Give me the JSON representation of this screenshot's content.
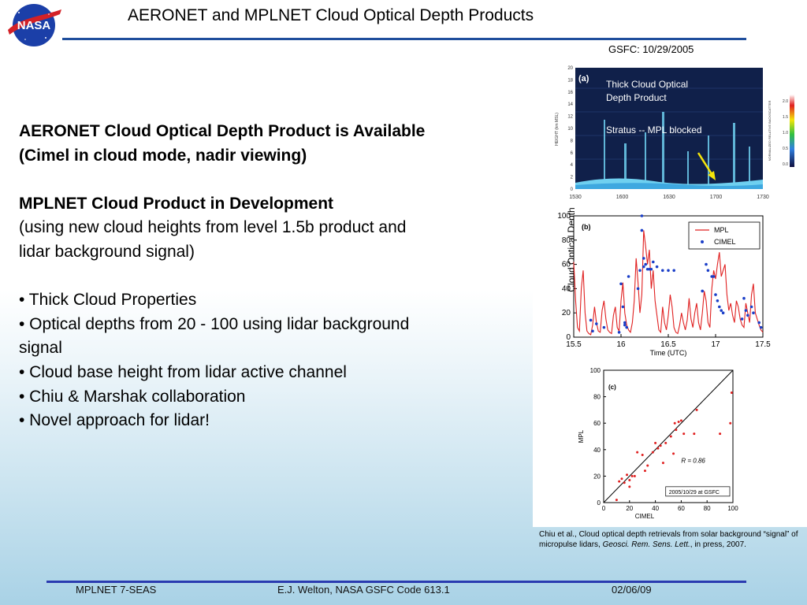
{
  "header": {
    "logo_text": "NASA",
    "title": "AERONET and MPLNET Cloud Optical Depth Products",
    "subtitle_date": "GSFC:  10/29/2005"
  },
  "body": {
    "heading1_line1": "AERONET Cloud Optical Depth Product is Available",
    "heading1_line2": "(Cimel in cloud mode, nadir viewing)",
    "heading2": "MPLNET Cloud Product in Development",
    "para_line1": "(using new cloud heights from level 1.5b product and",
    "para_line2": "lidar background signal)",
    "bullets": [
      "• Thick Cloud Properties",
      "• Optical depths from 20 - 100 using lidar background",
      "signal",
      "• Cloud base height from lidar active channel",
      "• Chiu & Marshak collaboration",
      "• Novel approach for lidar!"
    ]
  },
  "figure_a": {
    "panel_label": "(a)",
    "annotation1_line1": "Thick Cloud Optical",
    "annotation1_line2": "Depth Product",
    "annotation2": "Stratus -- MPL blocked",
    "ylabel": "HEIGHT (km MSL)",
    "colorbar_label": "NORMALIZED RELATIVE BACKSCATTER",
    "colorbar_ticks": [
      "2.0",
      "1.5",
      "1.0",
      "0.5",
      "0.0"
    ],
    "yticks": [
      "0",
      "2",
      "4",
      "6",
      "8",
      "10",
      "12",
      "14",
      "16",
      "18",
      "20"
    ],
    "xticks": [
      "1530",
      "1600",
      "1630",
      "1700",
      "1730"
    ],
    "colors": {
      "background": "#10204a",
      "cloud": "#6fd0f0",
      "annotation": "#ffffff",
      "arrow": "#f5e50a"
    }
  },
  "chart_data": [
    {
      "type": "line",
      "panel_label": "(b)",
      "xlabel": "Time (UTC)",
      "ylabel": "Cloud Optical Depth",
      "xlim": [
        15.5,
        17.5
      ],
      "ylim": [
        0,
        100
      ],
      "xticks": [
        "15.5",
        "16",
        "16.5",
        "17",
        "17.5"
      ],
      "yticks": [
        "0",
        "20",
        "40",
        "60",
        "80",
        "100"
      ],
      "series": [
        {
          "name": "MPL",
          "style": "line",
          "color": "#e02020",
          "x": [
            15.5,
            15.52,
            15.54,
            15.56,
            15.58,
            15.6,
            15.62,
            15.64,
            15.66,
            15.68,
            15.7,
            15.72,
            15.74,
            15.76,
            15.78,
            15.8,
            15.82,
            15.84,
            15.86,
            15.88,
            15.9,
            15.92,
            15.94,
            15.96,
            15.98,
            16.0,
            16.02,
            16.04,
            16.06,
            16.08,
            16.1,
            16.12,
            16.14,
            16.16,
            16.18,
            16.2,
            16.22,
            16.24,
            16.26,
            16.28,
            16.3,
            16.32,
            16.34,
            16.36,
            16.38,
            16.4,
            16.42,
            16.44,
            16.46,
            16.48,
            16.5,
            16.52,
            16.54,
            16.56,
            16.58,
            16.6,
            16.62,
            16.64,
            16.66,
            16.68,
            16.7,
            16.72,
            16.74,
            16.76,
            16.78,
            16.8,
            16.82,
            16.84,
            16.86,
            16.88,
            16.9,
            16.92,
            16.94,
            16.96,
            16.98,
            17.0,
            17.02,
            17.04,
            17.06,
            17.08,
            17.1,
            17.12,
            17.14,
            17.16,
            17.18,
            17.2,
            17.22,
            17.24,
            17.26,
            17.28,
            17.3,
            17.32,
            17.34,
            17.36,
            17.38,
            17.4,
            17.42,
            17.44,
            17.46,
            17.48,
            17.5
          ],
          "values": [
            62,
            30,
            8,
            5,
            40,
            55,
            20,
            5,
            3,
            2,
            10,
            25,
            12,
            5,
            4,
            22,
            30,
            15,
            6,
            4,
            3,
            18,
            25,
            8,
            5,
            30,
            45,
            20,
            10,
            6,
            4,
            12,
            30,
            65,
            45,
            20,
            35,
            88,
            75,
            60,
            72,
            40,
            55,
            30,
            18,
            6,
            4,
            25,
            12,
            6,
            18,
            35,
            25,
            8,
            4,
            3,
            10,
            20,
            12,
            6,
            14,
            32,
            15,
            8,
            20,
            28,
            12,
            6,
            20,
            38,
            30,
            12,
            8,
            40,
            55,
            48,
            60,
            70,
            50,
            55,
            60,
            35,
            22,
            28,
            18,
            12,
            30,
            25,
            15,
            10,
            8,
            28,
            20,
            12,
            35,
            44,
            20,
            15,
            10,
            6,
            4
          ]
        },
        {
          "name": "CIMEL",
          "style": "scatter",
          "color": "#1a3ec8",
          "x": [
            15.68,
            15.7,
            15.74,
            15.82,
            15.98,
            16.0,
            16.02,
            16.04,
            16.04,
            16.06,
            16.08,
            16.18,
            16.2,
            16.22,
            16.22,
            16.24,
            16.24,
            16.26,
            16.28,
            16.3,
            16.32,
            16.34,
            16.38,
            16.44,
            16.5,
            16.56,
            16.86,
            16.9,
            16.92,
            16.96,
            16.98,
            17.0,
            17.02,
            17.04,
            17.06,
            17.08,
            17.28,
            17.3,
            17.32,
            17.34,
            17.38,
            17.4,
            17.46,
            17.48
          ],
          "values": [
            14,
            5,
            11,
            8,
            4,
            44,
            25,
            12,
            10,
            8,
            50,
            40,
            55,
            100,
            88,
            58,
            65,
            60,
            56,
            56,
            56,
            62,
            58,
            55,
            55,
            55,
            38,
            60,
            55,
            50,
            50,
            35,
            30,
            25,
            22,
            20,
            15,
            32,
            22,
            18,
            25,
            20,
            12,
            8
          ]
        }
      ]
    },
    {
      "type": "scatter",
      "panel_label": "(c)",
      "xlabel": "CIMEL",
      "ylabel": "MPL",
      "xlim": [
        0,
        100
      ],
      "ylim": [
        0,
        100
      ],
      "xticks": [
        "0",
        "20",
        "40",
        "60",
        "80",
        "100"
      ],
      "yticks": [
        "0",
        "20",
        "40",
        "60",
        "80",
        "100"
      ],
      "annotation": "R = 0.86",
      "legend_box": "2005/10/29 at GSFC",
      "series": [
        {
          "name": "",
          "color": "#e02020",
          "x": [
            10,
            12,
            14,
            16,
            18,
            20,
            20,
            22,
            24,
            26,
            30,
            32,
            34,
            38,
            40,
            42,
            44,
            46,
            48,
            52,
            54,
            55,
            56,
            58,
            60,
            62,
            70,
            72,
            90,
            98,
            99
          ],
          "values": [
            2,
            16,
            18,
            15,
            21,
            12,
            17,
            20,
            20,
            38,
            36,
            24,
            28,
            38,
            45,
            41,
            43,
            30,
            45,
            50,
            37,
            60,
            55,
            61,
            62,
            52,
            52,
            70,
            52,
            60,
            83
          ]
        },
        {
          "name": "1:1",
          "style": "line",
          "color": "#000000",
          "x": [
            0,
            100
          ],
          "values": [
            0,
            100
          ]
        }
      ]
    }
  ],
  "citation": {
    "prefix": "Chiu et al., Cloud optical depth retrievals from solar background “signal” of micropulse lidars, ",
    "journal": "Geosci. Rem. Sens. Lett.",
    "suffix": ", in press, 2007."
  },
  "footer": {
    "left": "MPLNET 7-SEAS",
    "center": "E.J. Welton, NASA GSFC Code 613.1",
    "right": "02/06/09"
  }
}
